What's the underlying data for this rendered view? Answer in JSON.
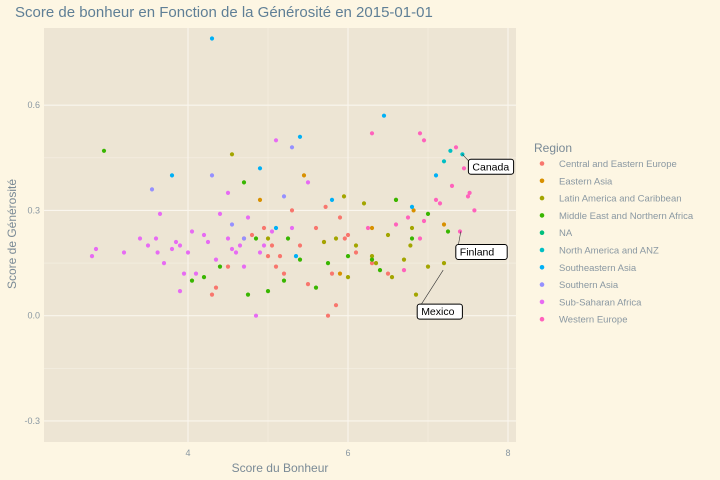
{
  "chart_data": {
    "type": "scatter",
    "title": "Score de bonheur en Fonction de la Générosité en 2015-01-01",
    "xlabel": "Score du Bonheur",
    "ylabel": "Score de Générosité",
    "xlim": [
      2.2,
      8.1
    ],
    "ylim": [
      -0.36,
      0.82
    ],
    "x_ticks": [
      4,
      6,
      8
    ],
    "y_ticks": [
      -0.3,
      0.0,
      0.3,
      0.6
    ],
    "y_tick_labels": [
      "-0.3",
      "0.0",
      "0.3",
      "0.6"
    ],
    "grid": true,
    "legend": {
      "title": "Region",
      "position": "right",
      "entries": [
        {
          "name": "Central and Eastern Europe",
          "color": "#f8766d"
        },
        {
          "name": "Eastern Asia",
          "color": "#d89000"
        },
        {
          "name": "Latin America and Caribbean",
          "color": "#a3a500"
        },
        {
          "name": "Middle East and Northern Africa",
          "color": "#39b600"
        },
        {
          "name": "NA",
          "color": "#00bf7d"
        },
        {
          "name": "North America and ANZ",
          "color": "#00bfc4"
        },
        {
          "name": "Southeastern Asia",
          "color": "#00b0f6"
        },
        {
          "name": "Southern Asia",
          "color": "#9590ff"
        },
        {
          "name": "Sub-Saharan Africa",
          "color": "#e76bf3"
        },
        {
          "name": "Western Europe",
          "color": "#ff62bc"
        }
      ]
    },
    "annotations": [
      {
        "label": "Canada",
        "x": 7.43,
        "y": 0.46
      },
      {
        "label": "Finland",
        "x": 7.41,
        "y": 0.24
      },
      {
        "label": "Mexico",
        "x": 7.19,
        "y": 0.13
      }
    ],
    "series": [
      {
        "name": "Central and Eastern Europe",
        "points": [
          [
            4.3,
            0.06
          ],
          [
            4.35,
            0.08
          ],
          [
            4.5,
            0.14
          ],
          [
            4.7,
            0.22
          ],
          [
            4.8,
            0.23
          ],
          [
            4.95,
            0.25
          ],
          [
            5.0,
            0.17
          ],
          [
            5.05,
            0.2
          ],
          [
            5.1,
            0.14
          ],
          [
            5.2,
            0.12
          ],
          [
            5.3,
            0.3
          ],
          [
            5.4,
            0.2
          ],
          [
            5.5,
            0.09
          ],
          [
            5.6,
            0.25
          ],
          [
            5.7,
            0.21
          ],
          [
            5.75,
            0.0
          ],
          [
            5.8,
            0.12
          ],
          [
            5.85,
            0.03
          ],
          [
            5.9,
            0.28
          ],
          [
            6.0,
            0.23
          ],
          [
            6.1,
            0.18
          ],
          [
            6.3,
            0.15
          ],
          [
            6.5,
            0.12
          ],
          [
            5.96,
            0.22
          ],
          [
            5.72,
            0.31
          ],
          [
            5.15,
            0.17
          ]
        ]
      },
      {
        "name": "Eastern Asia",
        "points": [
          [
            4.9,
            0.33
          ],
          [
            5.45,
            0.4
          ],
          [
            5.9,
            0.12
          ],
          [
            6.3,
            0.25
          ],
          [
            6.82,
            0.3
          ],
          [
            7.2,
            0.26
          ]
        ]
      },
      {
        "name": "Latin America and Caribbean",
        "points": [
          [
            4.55,
            0.46
          ],
          [
            5.0,
            0.22
          ],
          [
            5.7,
            0.21
          ],
          [
            5.85,
            0.22
          ],
          [
            5.95,
            0.34
          ],
          [
            6.0,
            0.11
          ],
          [
            6.1,
            0.2
          ],
          [
            6.2,
            0.32
          ],
          [
            6.3,
            0.17
          ],
          [
            6.35,
            0.15
          ],
          [
            6.5,
            0.23
          ],
          [
            6.6,
            0.33
          ],
          [
            6.7,
            0.16
          ],
          [
            6.8,
            0.25
          ],
          [
            6.85,
            0.06
          ],
          [
            7.0,
            0.14
          ],
          [
            7.2,
            0.15
          ],
          [
            6.55,
            0.11
          ],
          [
            6.78,
            0.2
          ]
        ]
      },
      {
        "name": "Middle East and Northern Africa",
        "points": [
          [
            2.95,
            0.47
          ],
          [
            4.05,
            0.1
          ],
          [
            4.2,
            0.11
          ],
          [
            4.4,
            0.14
          ],
          [
            4.7,
            0.38
          ],
          [
            4.75,
            0.06
          ],
          [
            4.85,
            0.22
          ],
          [
            5.0,
            0.07
          ],
          [
            5.2,
            0.1
          ],
          [
            5.4,
            0.16
          ],
          [
            5.6,
            0.08
          ],
          [
            5.75,
            0.15
          ],
          [
            6.0,
            0.17
          ],
          [
            6.3,
            0.16
          ],
          [
            6.4,
            0.13
          ],
          [
            6.6,
            0.33
          ],
          [
            6.8,
            0.22
          ],
          [
            7.0,
            0.29
          ],
          [
            7.25,
            0.24
          ],
          [
            5.25,
            0.22
          ]
        ]
      },
      {
        "name": "North America and ANZ",
        "points": [
          [
            7.2,
            0.44
          ],
          [
            7.28,
            0.47
          ],
          [
            7.43,
            0.46
          ]
        ]
      },
      {
        "name": "Southeastern Asia",
        "points": [
          [
            3.8,
            0.4
          ],
          [
            4.3,
            0.79
          ],
          [
            4.9,
            0.42
          ],
          [
            5.1,
            0.25
          ],
          [
            5.4,
            0.51
          ],
          [
            5.35,
            0.17
          ],
          [
            5.8,
            0.33
          ],
          [
            6.45,
            0.57
          ],
          [
            6.8,
            0.31
          ],
          [
            7.1,
            0.4
          ]
        ]
      },
      {
        "name": "Southern Asia",
        "points": [
          [
            3.55,
            0.36
          ],
          [
            4.3,
            0.4
          ],
          [
            4.55,
            0.26
          ],
          [
            4.7,
            0.22
          ],
          [
            5.2,
            0.34
          ],
          [
            5.3,
            0.48
          ]
        ]
      },
      {
        "name": "Sub-Saharan Africa",
        "points": [
          [
            2.8,
            0.17
          ],
          [
            2.85,
            0.19
          ],
          [
            3.2,
            0.18
          ],
          [
            3.4,
            0.22
          ],
          [
            3.5,
            0.2
          ],
          [
            3.6,
            0.22
          ],
          [
            3.62,
            0.18
          ],
          [
            3.65,
            0.29
          ],
          [
            3.7,
            0.15
          ],
          [
            3.8,
            0.19
          ],
          [
            3.85,
            0.21
          ],
          [
            3.9,
            0.2
          ],
          [
            3.95,
            0.12
          ],
          [
            4.0,
            0.18
          ],
          [
            4.05,
            0.24
          ],
          [
            4.1,
            0.12
          ],
          [
            4.2,
            0.23
          ],
          [
            4.25,
            0.21
          ],
          [
            4.35,
            0.16
          ],
          [
            4.4,
            0.29
          ],
          [
            4.5,
            0.22
          ],
          [
            4.55,
            0.19
          ],
          [
            4.6,
            0.18
          ],
          [
            4.65,
            0.2
          ],
          [
            4.7,
            0.14
          ],
          [
            4.75,
            0.28
          ],
          [
            4.9,
            0.18
          ],
          [
            4.95,
            0.2
          ],
          [
            5.05,
            0.24
          ],
          [
            5.1,
            0.5
          ],
          [
            5.5,
            0.38
          ],
          [
            4.85,
            0.0
          ],
          [
            3.9,
            0.07
          ],
          [
            4.5,
            0.35
          ],
          [
            5.3,
            0.25
          ]
        ]
      },
      {
        "name": "Western Europe",
        "points": [
          [
            6.3,
            0.52
          ],
          [
            6.75,
            0.28
          ],
          [
            6.9,
            0.52
          ],
          [
            6.95,
            0.5
          ],
          [
            7.1,
            0.33
          ],
          [
            7.15,
            0.32
          ],
          [
            7.3,
            0.37
          ],
          [
            7.35,
            0.48
          ],
          [
            7.4,
            0.24
          ],
          [
            7.45,
            0.42
          ],
          [
            7.5,
            0.34
          ],
          [
            7.52,
            0.35
          ],
          [
            7.55,
            0.44
          ],
          [
            7.58,
            0.3
          ],
          [
            6.95,
            0.27
          ],
          [
            6.9,
            0.22
          ],
          [
            6.6,
            0.26
          ],
          [
            6.25,
            0.25
          ],
          [
            6.7,
            0.13
          ]
        ]
      }
    ]
  }
}
